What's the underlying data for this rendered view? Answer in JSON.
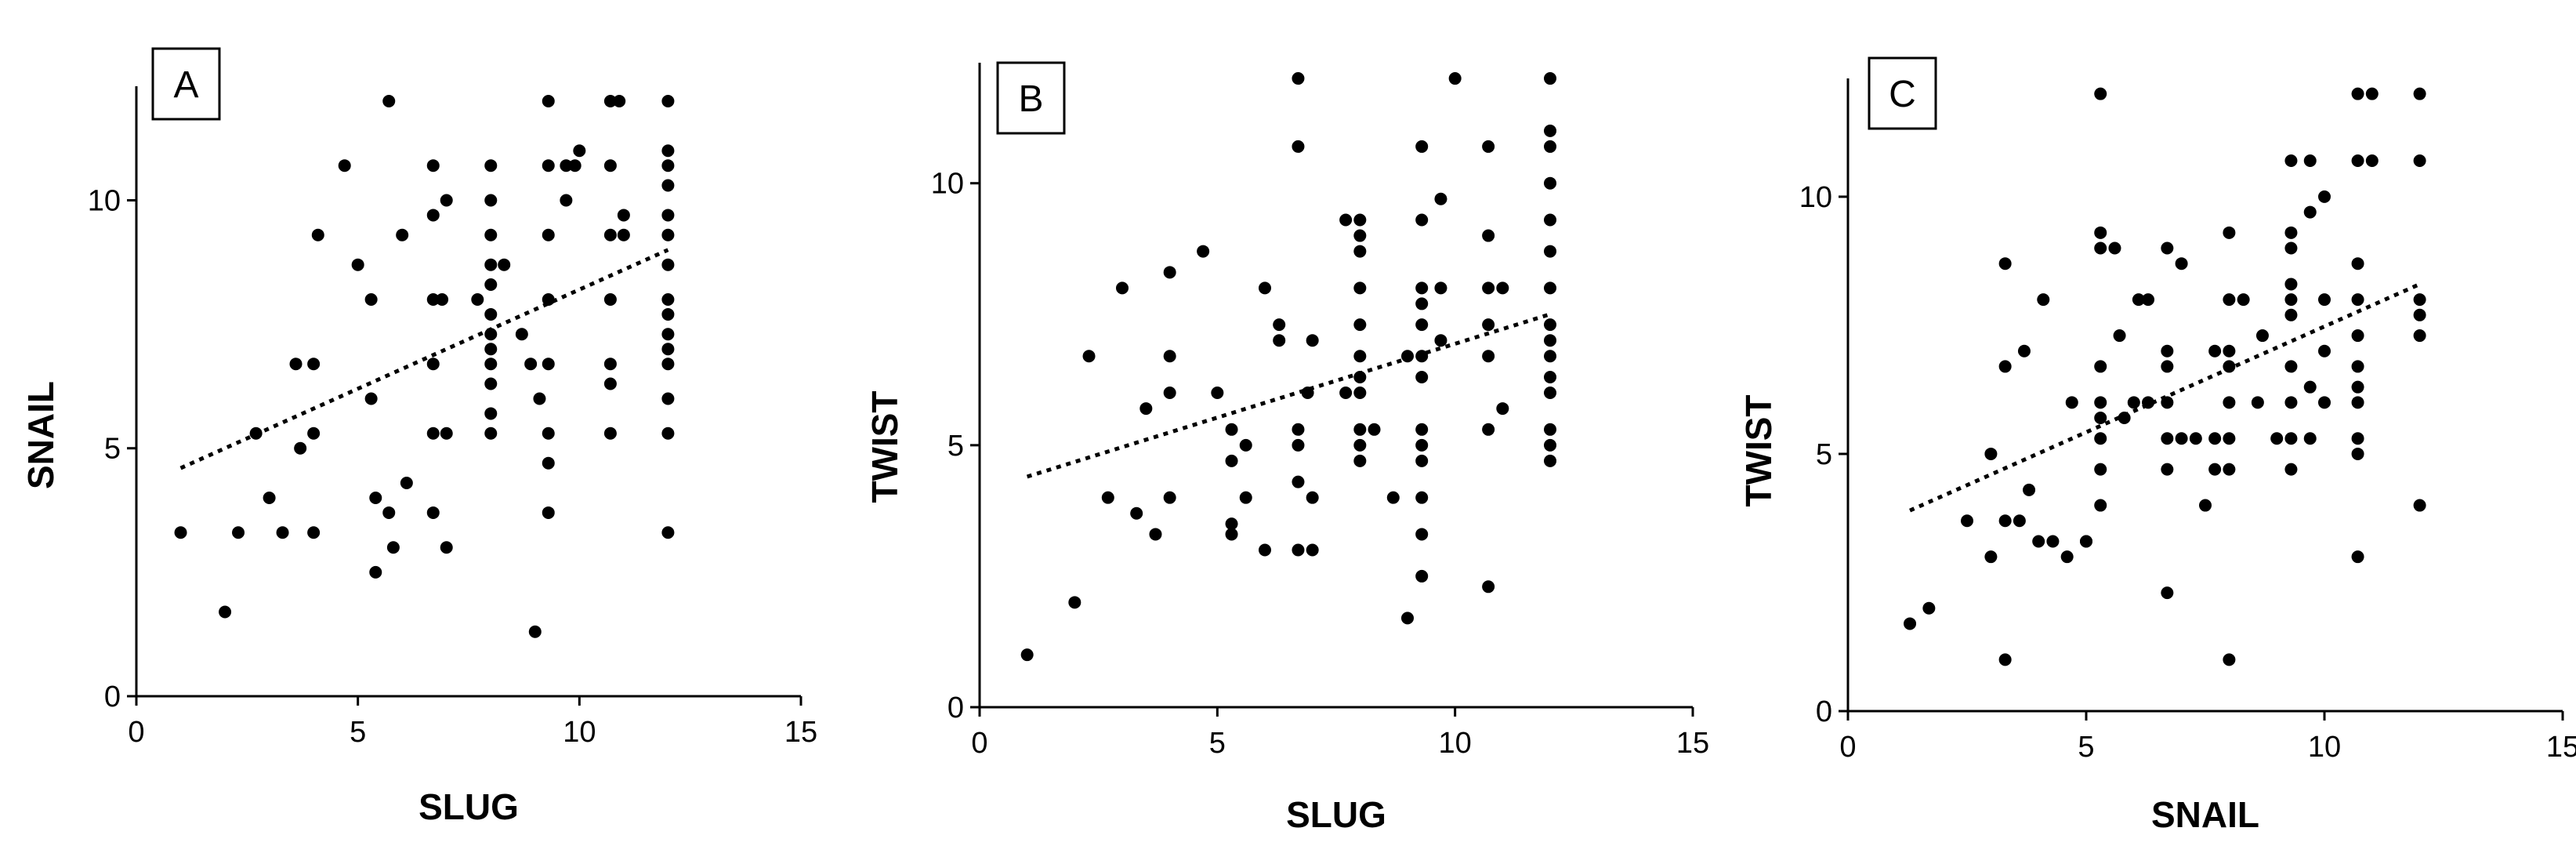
{
  "chart_data": [
    {
      "type": "scatter",
      "panel_label": "A",
      "xlabel": "SLUG",
      "ylabel": "SNAIL",
      "xlim": [
        0,
        15
      ],
      "ylim": [
        0,
        12.3
      ],
      "x_ticks": [
        0,
        5,
        10,
        15
      ],
      "y_ticks": [
        0,
        5,
        10
      ],
      "grid": false,
      "trendline": {
        "style": "dotted",
        "from": [
          1,
          4.6
        ],
        "to": [
          12,
          9.0
        ]
      },
      "points": [
        [
          1,
          3.3
        ],
        [
          2,
          1.7
        ],
        [
          2.3,
          3.3
        ],
        [
          2.7,
          5.3
        ],
        [
          3,
          4
        ],
        [
          3.3,
          3.3
        ],
        [
          3.6,
          6.7
        ],
        [
          3.7,
          5
        ],
        [
          4,
          5.3
        ],
        [
          4,
          6.7
        ],
        [
          4,
          3.3
        ],
        [
          4.1,
          9.3
        ],
        [
          4.7,
          10.7
        ],
        [
          5,
          8.7
        ],
        [
          5.3,
          8
        ],
        [
          5.3,
          6
        ],
        [
          5.4,
          4
        ],
        [
          5.4,
          2.5
        ],
        [
          5.7,
          12
        ],
        [
          5.7,
          3.7
        ],
        [
          5.8,
          3
        ],
        [
          6,
          9.3
        ],
        [
          6.1,
          4.3
        ],
        [
          6.7,
          8
        ],
        [
          6.7,
          6.7
        ],
        [
          6.7,
          10.7
        ],
        [
          6.7,
          9.7
        ],
        [
          6.7,
          3.7
        ],
        [
          6.7,
          5.3
        ],
        [
          6.9,
          8
        ],
        [
          7,
          5.3
        ],
        [
          7,
          10
        ],
        [
          7,
          3
        ],
        [
          7.7,
          8
        ],
        [
          8,
          10.7
        ],
        [
          8,
          10
        ],
        [
          8,
          9.3
        ],
        [
          8,
          8.7
        ],
        [
          8,
          8.3
        ],
        [
          8,
          7.7
        ],
        [
          8,
          7.3
        ],
        [
          8,
          7
        ],
        [
          8,
          6.7
        ],
        [
          8,
          6.3
        ],
        [
          8,
          5.7
        ],
        [
          8,
          5.3
        ],
        [
          8.3,
          8.7
        ],
        [
          8.7,
          7.3
        ],
        [
          8.9,
          6.7
        ],
        [
          9,
          1.3
        ],
        [
          9.1,
          6
        ],
        [
          9.3,
          12
        ],
        [
          9.3,
          10.7
        ],
        [
          9.3,
          9.3
        ],
        [
          9.3,
          8
        ],
        [
          9.3,
          6.7
        ],
        [
          9.3,
          5.3
        ],
        [
          9.3,
          4.7
        ],
        [
          9.3,
          3.7
        ],
        [
          9.7,
          10.7
        ],
        [
          9.7,
          10
        ],
        [
          9.9,
          10.7
        ],
        [
          10,
          11
        ],
        [
          10.7,
          12
        ],
        [
          10.7,
          10.7
        ],
        [
          10.7,
          9.3
        ],
        [
          10.7,
          8
        ],
        [
          10.7,
          6.7
        ],
        [
          10.7,
          6.3
        ],
        [
          10.7,
          5.3
        ],
        [
          10.9,
          12
        ],
        [
          11,
          9.7
        ],
        [
          11,
          9.3
        ],
        [
          12,
          12
        ],
        [
          12,
          11
        ],
        [
          12,
          10.7
        ],
        [
          12,
          10.3
        ],
        [
          12,
          9.7
        ],
        [
          12,
          9.3
        ],
        [
          12,
          8.7
        ],
        [
          12,
          8
        ],
        [
          12,
          7.7
        ],
        [
          12,
          7.3
        ],
        [
          12,
          7
        ],
        [
          12,
          6.7
        ],
        [
          12,
          6
        ],
        [
          12,
          5.3
        ],
        [
          12,
          3.3
        ]
      ]
    },
    {
      "type": "scatter",
      "panel_label": "B",
      "xlabel": "SLUG",
      "ylabel": "TWIST",
      "xlim": [
        0,
        15
      ],
      "ylim": [
        0,
        12.3
      ],
      "x_ticks": [
        0,
        5,
        10,
        15
      ],
      "y_ticks": [
        0,
        5,
        10
      ],
      "grid": false,
      "trendline": {
        "style": "dotted",
        "from": [
          1,
          4.4
        ],
        "to": [
          12,
          7.5
        ]
      },
      "points": [
        [
          1,
          1
        ],
        [
          2,
          2
        ],
        [
          2.3,
          6.7
        ],
        [
          2.7,
          4
        ],
        [
          3,
          8
        ],
        [
          3.3,
          3.7
        ],
        [
          3.5,
          5.7
        ],
        [
          3.7,
          3.3
        ],
        [
          4,
          8.3
        ],
        [
          4,
          6.7
        ],
        [
          4,
          6
        ],
        [
          4,
          4
        ],
        [
          4.7,
          8.7
        ],
        [
          5,
          6
        ],
        [
          5.3,
          5.3
        ],
        [
          5.3,
          4.7
        ],
        [
          5.3,
          3.5
        ],
        [
          5.3,
          3.3
        ],
        [
          5.6,
          5
        ],
        [
          5.6,
          4
        ],
        [
          6,
          8
        ],
        [
          6,
          3
        ],
        [
          6.3,
          7.3
        ],
        [
          6.3,
          7
        ],
        [
          6.7,
          12
        ],
        [
          6.7,
          10.7
        ],
        [
          6.7,
          5.3
        ],
        [
          6.7,
          5
        ],
        [
          6.7,
          4.3
        ],
        [
          6.7,
          3
        ],
        [
          6.9,
          6
        ],
        [
          7,
          7
        ],
        [
          7,
          4
        ],
        [
          7,
          3
        ],
        [
          7.7,
          9.3
        ],
        [
          7.7,
          6
        ],
        [
          8,
          9.3
        ],
        [
          8,
          9
        ],
        [
          8,
          8.7
        ],
        [
          8,
          8
        ],
        [
          8,
          7.3
        ],
        [
          8,
          6.7
        ],
        [
          8,
          6.3
        ],
        [
          8,
          6
        ],
        [
          8,
          5.3
        ],
        [
          8,
          5
        ],
        [
          8,
          4.7
        ],
        [
          8.3,
          5.3
        ],
        [
          8.7,
          4
        ],
        [
          9,
          1.7
        ],
        [
          9,
          6.7
        ],
        [
          9.3,
          10.7
        ],
        [
          9.3,
          9.3
        ],
        [
          9.3,
          8
        ],
        [
          9.3,
          7.7
        ],
        [
          9.3,
          7.3
        ],
        [
          9.3,
          6.7
        ],
        [
          9.3,
          6.3
        ],
        [
          9.3,
          5.3
        ],
        [
          9.3,
          5
        ],
        [
          9.3,
          4.7
        ],
        [
          9.3,
          4
        ],
        [
          9.3,
          3.3
        ],
        [
          9.3,
          2.5
        ],
        [
          9.7,
          9.7
        ],
        [
          9.7,
          8
        ],
        [
          9.7,
          7
        ],
        [
          10,
          12
        ],
        [
          10.7,
          10.7
        ],
        [
          10.7,
          9
        ],
        [
          10.7,
          8
        ],
        [
          10.7,
          7.3
        ],
        [
          10.7,
          6.7
        ],
        [
          10.7,
          5.3
        ],
        [
          10.7,
          2.3
        ],
        [
          11,
          8
        ],
        [
          11,
          5.7
        ],
        [
          12,
          12
        ],
        [
          12,
          11
        ],
        [
          12,
          10.7
        ],
        [
          12,
          10
        ],
        [
          12,
          9.3
        ],
        [
          12,
          8.7
        ],
        [
          12,
          8
        ],
        [
          12,
          7.3
        ],
        [
          12,
          7
        ],
        [
          12,
          6.7
        ],
        [
          12,
          6.3
        ],
        [
          12,
          6
        ],
        [
          12,
          5.3
        ],
        [
          12,
          5
        ],
        [
          12,
          4.7
        ]
      ]
    },
    {
      "type": "scatter",
      "panel_label": "C",
      "xlabel": "SNAIL",
      "ylabel": "TWIST",
      "xlim": [
        0,
        15
      ],
      "ylim": [
        0,
        12.3
      ],
      "x_ticks": [
        0,
        5,
        10,
        15
      ],
      "y_ticks": [
        0,
        5,
        10
      ],
      "grid": false,
      "trendline": {
        "style": "dotted",
        "from": [
          1.3,
          3.9
        ],
        "to": [
          12,
          8.3
        ]
      },
      "points": [
        [
          1.3,
          1.7
        ],
        [
          1.7,
          2
        ],
        [
          2.5,
          3.7
        ],
        [
          3,
          5
        ],
        [
          3,
          3
        ],
        [
          3.3,
          8.7
        ],
        [
          3.3,
          6.7
        ],
        [
          3.3,
          3.7
        ],
        [
          3.3,
          1
        ],
        [
          3.6,
          3.7
        ],
        [
          3.7,
          7
        ],
        [
          3.8,
          4.3
        ],
        [
          4,
          3.3
        ],
        [
          4.1,
          8
        ],
        [
          4.3,
          3.3
        ],
        [
          4.6,
          3
        ],
        [
          4.7,
          6
        ],
        [
          5,
          3.3
        ],
        [
          5,
          3.3
        ],
        [
          5.3,
          12
        ],
        [
          5.3,
          9.3
        ],
        [
          5.3,
          9
        ],
        [
          5.3,
          6.7
        ],
        [
          5.3,
          6
        ],
        [
          5.3,
          5.7
        ],
        [
          5.3,
          5.3
        ],
        [
          5.3,
          4.7
        ],
        [
          5.3,
          4
        ],
        [
          5.6,
          9
        ],
        [
          5.7,
          7.3
        ],
        [
          5.8,
          5.7
        ],
        [
          6,
          6
        ],
        [
          6.1,
          8
        ],
        [
          6.3,
          8
        ],
        [
          6.3,
          6
        ],
        [
          6.7,
          9
        ],
        [
          6.7,
          7
        ],
        [
          6.7,
          6.7
        ],
        [
          6.7,
          6
        ],
        [
          6.7,
          5.3
        ],
        [
          6.7,
          4.7
        ],
        [
          6.7,
          2.3
        ],
        [
          7,
          8.7
        ],
        [
          7,
          5.3
        ],
        [
          7.3,
          5.3
        ],
        [
          7.5,
          4
        ],
        [
          7.7,
          7
        ],
        [
          7.7,
          5.3
        ],
        [
          7.7,
          4.7
        ],
        [
          8,
          9.3
        ],
        [
          8,
          8
        ],
        [
          8,
          7
        ],
        [
          8,
          6.7
        ],
        [
          8,
          6
        ],
        [
          8,
          5.3
        ],
        [
          8,
          4.7
        ],
        [
          8,
          1
        ],
        [
          8.3,
          8
        ],
        [
          8.6,
          6
        ],
        [
          8.7,
          7.3
        ],
        [
          9,
          5.3
        ],
        [
          9.3,
          10.7
        ],
        [
          9.3,
          9.3
        ],
        [
          9.3,
          9
        ],
        [
          9.3,
          8.3
        ],
        [
          9.3,
          8
        ],
        [
          9.3,
          7.7
        ],
        [
          9.3,
          6.7
        ],
        [
          9.3,
          6
        ],
        [
          9.3,
          5.3
        ],
        [
          9.3,
          4.7
        ],
        [
          9.7,
          10.7
        ],
        [
          9.7,
          9.7
        ],
        [
          9.7,
          6.3
        ],
        [
          9.7,
          5.3
        ],
        [
          10,
          10
        ],
        [
          10,
          8
        ],
        [
          10,
          7
        ],
        [
          10,
          6
        ],
        [
          10.7,
          12
        ],
        [
          10.7,
          10.7
        ],
        [
          10.7,
          8.7
        ],
        [
          10.7,
          8
        ],
        [
          10.7,
          7.3
        ],
        [
          10.7,
          6.7
        ],
        [
          10.7,
          6.3
        ],
        [
          10.7,
          6
        ],
        [
          10.7,
          5.3
        ],
        [
          10.7,
          5
        ],
        [
          10.7,
          3
        ],
        [
          11,
          12
        ],
        [
          11,
          10.7
        ],
        [
          12,
          12
        ],
        [
          12,
          10.7
        ],
        [
          12,
          8
        ],
        [
          12,
          7.7
        ],
        [
          12,
          7.3
        ],
        [
          12,
          4
        ]
      ]
    }
  ]
}
